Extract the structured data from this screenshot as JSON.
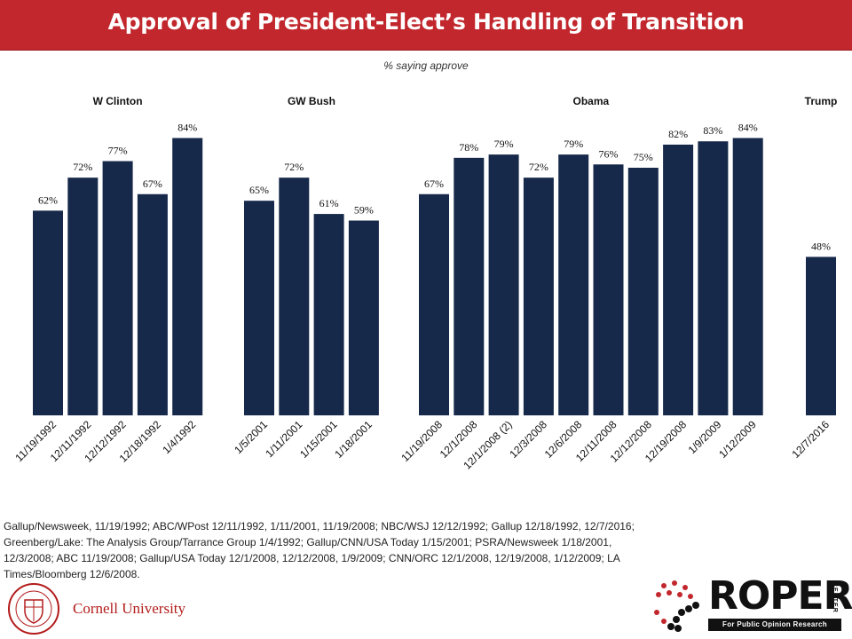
{
  "header": {
    "title": "Approval of President-Elect’s Handling of Transition",
    "subtitle": "% saying approve"
  },
  "chart_data": {
    "type": "bar",
    "ylim": [
      0,
      100
    ],
    "bar_color": "#17294a",
    "groups": [
      {
        "name": "W Clinton",
        "categories": [
          "11/19/1992",
          "12/11/1992",
          "12/12/1992",
          "12/18/1992",
          "1/4/1992"
        ],
        "values": [
          62,
          72,
          77,
          67,
          84
        ]
      },
      {
        "name": "GW Bush",
        "categories": [
          "1/5/2001",
          "1/11/2001",
          "1/15/2001",
          "1/18/2001"
        ],
        "values": [
          65,
          72,
          61,
          59
        ]
      },
      {
        "name": "Obama",
        "categories": [
          "11/19/2008",
          "12/1/2008",
          "12/1/2008 (2)",
          "12/3/2008",
          "12/6/2008",
          "12/11/2008",
          "12/12/2008",
          "12/19/2008",
          "1/9/2009",
          "1/12/2009"
        ],
        "values": [
          67,
          78,
          79,
          72,
          79,
          76,
          75,
          82,
          83,
          84
        ]
      },
      {
        "name": "Trump",
        "categories": [
          "12/7/2016"
        ],
        "values": [
          48
        ]
      }
    ]
  },
  "sources": {
    "line1": "Gallup/Newsweek, 11/19/1992;  ABC/WPost 12/11/1992,  1/11/2001,  11/19/2008;  NBC/WSJ 12/12/1992;  Gallup 12/18/1992,  12/7/2016;",
    "line2": "Greenberg/Lake: The Analysis Group/Tarrance Group 1/4/1992;  Gallup/CNN/USA Today 1/15/2001;  PSRA/Newsweek 1/18/2001,",
    "line3": "12/3/2008;  ABC 11/19/2008;  Gallup/USA Today 12/1/2008,  12/12/2008,  1/9/2009;  CNN/ORC 12/1/2008,  12/19/2008,  1/12/2009;  LA",
    "line4": "Times/Bloomberg 12/6/2008."
  },
  "footer": {
    "cornell_name": "Cornell University",
    "roper_word": "ROPER",
    "roper_center": "CENTER",
    "roper_tagline": "For Public Opinion Research",
    "roper_dot_color": "#c1272d"
  }
}
